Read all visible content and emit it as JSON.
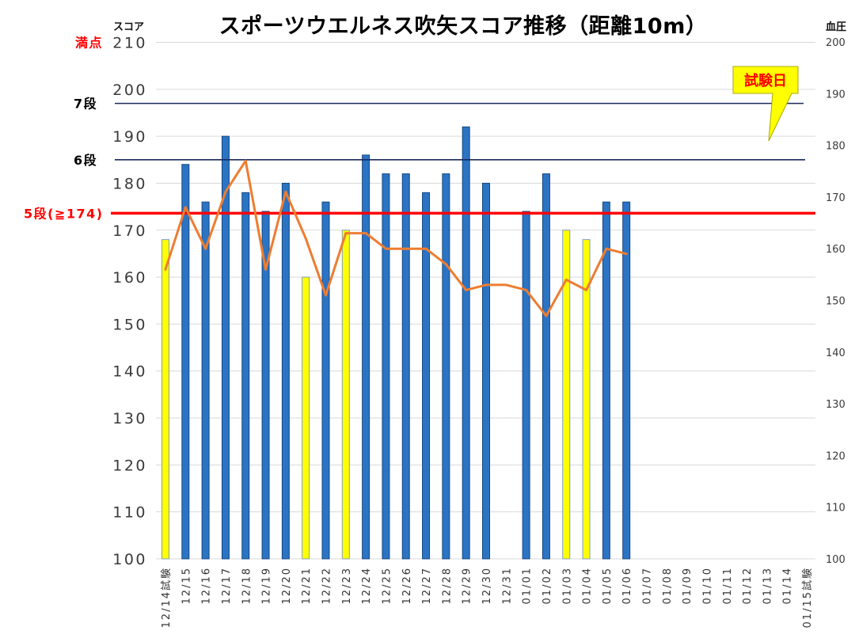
{
  "chart_data": {
    "type": "bar",
    "title": "スポーツウエルネス吹矢スコア推移（距離10m）",
    "y_left_label": "スコア",
    "y_right_label": "血圧",
    "ylim_left": [
      100,
      210
    ],
    "ylim_right": [
      100,
      200
    ],
    "yticks_left": [
      100,
      110,
      120,
      130,
      140,
      150,
      160,
      170,
      180,
      190,
      200,
      210
    ],
    "yticks_right": [
      100,
      110,
      120,
      130,
      140,
      150,
      160,
      170,
      180,
      190,
      200
    ],
    "grid": true,
    "categories": [
      "12/14試験",
      "12/15",
      "12/16",
      "12/17",
      "12/18",
      "12/19",
      "12/20",
      "12/21",
      "12/22",
      "12/23",
      "12/24",
      "12/25",
      "12/26",
      "12/27",
      "12/28",
      "12/29",
      "12/30",
      "12/31",
      "01/01",
      "01/02",
      "01/03",
      "01/04",
      "01/05",
      "01/06",
      "01/07",
      "01/08",
      "01/09",
      "01/10",
      "01/11",
      "01/12",
      "01/13",
      "01/14",
      "01/15試験"
    ],
    "bars": {
      "axis": "left",
      "values": [
        168,
        184,
        176,
        190,
        178,
        174,
        180,
        160,
        176,
        170,
        186,
        182,
        182,
        178,
        182,
        192,
        180,
        null,
        174,
        182,
        170,
        168,
        176,
        176,
        null,
        null,
        null,
        null,
        null,
        null,
        null,
        null,
        null
      ],
      "colors": [
        "#FFFF00",
        "#2B74C4",
        "#2B74C4",
        "#2B74C4",
        "#2B74C4",
        "#2B74C4",
        "#2B74C4",
        "#FFFF00",
        "#2B74C4",
        "#FFFF00",
        "#2B74C4",
        "#2B74C4",
        "#2B74C4",
        "#2B74C4",
        "#2B74C4",
        "#2B74C4",
        "#2B74C4",
        null,
        "#2B74C4",
        "#2B74C4",
        "#FFFF00",
        "#FFFF00",
        "#2B74C4",
        "#2B74C4",
        null,
        null,
        null,
        null,
        null,
        null,
        null,
        null,
        null
      ]
    },
    "line": {
      "axis": "right",
      "color": "#ED7D31",
      "values": [
        156,
        168,
        160,
        171,
        177,
        156,
        171,
        162,
        151,
        163,
        163,
        160,
        160,
        160,
        157,
        152,
        153,
        153,
        152,
        147,
        154,
        152,
        160,
        159,
        null,
        null,
        null,
        null,
        null,
        null,
        null,
        null,
        null
      ]
    },
    "reference_lines": [
      {
        "label": "満点",
        "value": 210,
        "label_color": "#FF0000",
        "line_color": null
      },
      {
        "label": "7段",
        "value": 197,
        "label_color": "#000000",
        "line_color": "#1B2A5C"
      },
      {
        "label": "6段",
        "value": 185,
        "label_color": "#000000",
        "line_color": "#1B2A5C"
      },
      {
        "label": "5段(≧174)",
        "value": 173.6,
        "label_color": "#FF0000",
        "line_color": "#FF0000"
      }
    ],
    "callout": {
      "text": "試験日",
      "fill": "#FFFF00",
      "text_color": "#FF0000"
    }
  }
}
